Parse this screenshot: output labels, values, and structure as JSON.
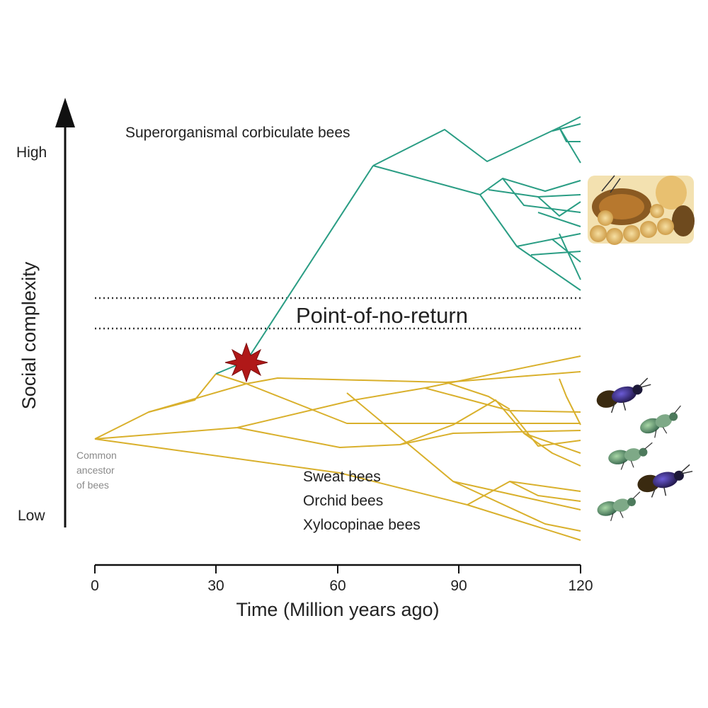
{
  "y_axis": {
    "label": "Social complexity",
    "high_label": "High",
    "low_label": "Low"
  },
  "x_axis": {
    "label": "Time (Million years ago)",
    "ticks": [
      "0",
      "30",
      "60",
      "90",
      "120"
    ]
  },
  "annotations": {
    "top_group": "Superorganismal corbiculate bees",
    "threshold": "Point-of-no-return",
    "ancestor": [
      "Common",
      "ancestor",
      "of bees"
    ],
    "bottom_groups": [
      "Sweat bees",
      "Orchid bees",
      "Xylocopinae bees"
    ]
  },
  "colors": {
    "top_lineage": "#2a9d84",
    "bottom_lineage": "#d9b02c",
    "threshold_lines": "#333333",
    "origin_marker": "#b01818",
    "axis": "#111111"
  },
  "icons": {
    "origin_marker": "starburst-icon",
    "top_photo": "honeybee-comb-photo",
    "bottom_photos": [
      "purple-bee-icon",
      "green-bee-icon",
      "green-bee-icon",
      "purple-bee-icon",
      "green-bee-icon"
    ]
  }
}
